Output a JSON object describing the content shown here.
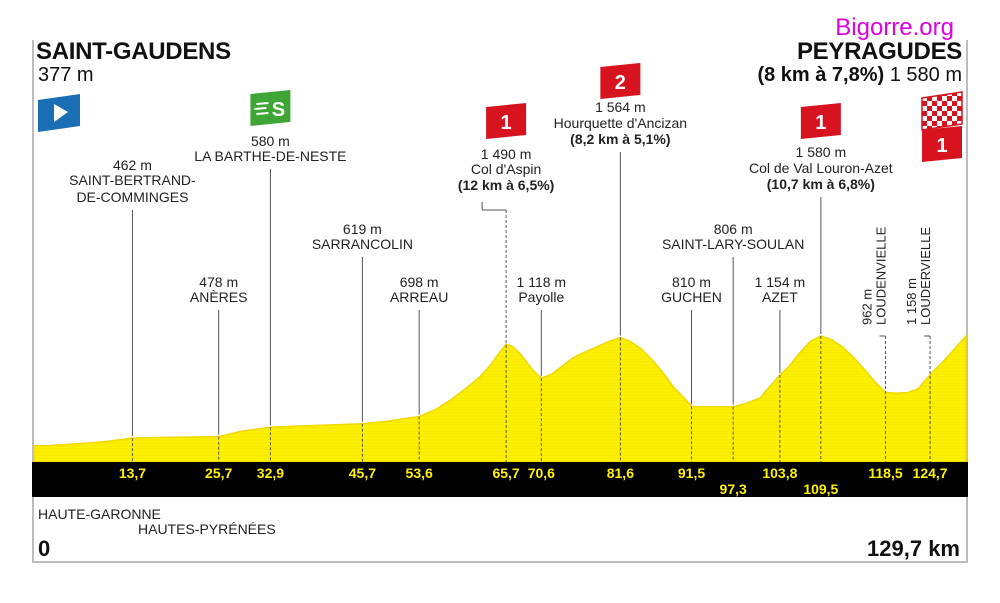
{
  "watermark": "Bigorre.org",
  "start": {
    "name": "SAINT-GAUDENS",
    "alt": "377 m"
  },
  "finish": {
    "name": "PEYRAGUDES",
    "climb": "(8 km à 7,8%)",
    "alt": "1 580 m"
  },
  "regions": [
    "HAUTE-GARONNE",
    "HAUTES-PYRÉNÉES"
  ],
  "start_km": "0",
  "total_km": "129,7 km",
  "colors": {
    "profile": "#fff200",
    "profile_edge": "#f1d800",
    "axis_bar": "#000000",
    "km_text": "#fff200",
    "kom": "#d6131f",
    "sprint": "#3fa535",
    "start_flag": "#1a6fb4"
  },
  "chart_data": {
    "type": "area",
    "xlabel": "",
    "ylabel": "",
    "xlim": [
      0,
      129.7
    ],
    "ylim": [
      0,
      1600
    ],
    "profile": [
      [
        0,
        377
      ],
      [
        2,
        380
      ],
      [
        5,
        395
      ],
      [
        8,
        410
      ],
      [
        10,
        425
      ],
      [
        13.7,
        462
      ],
      [
        17,
        468
      ],
      [
        20,
        472
      ],
      [
        25.7,
        478
      ],
      [
        29,
        540
      ],
      [
        32.9,
        580
      ],
      [
        36,
        592
      ],
      [
        40,
        602
      ],
      [
        45.7,
        619
      ],
      [
        49,
        645
      ],
      [
        53.6,
        698
      ],
      [
        56,
        780
      ],
      [
        58,
        880
      ],
      [
        60,
        1000
      ],
      [
        62,
        1130
      ],
      [
        63.5,
        1260
      ],
      [
        64.7,
        1390
      ],
      [
        65.7,
        1490
      ],
      [
        66.5,
        1470
      ],
      [
        67.5,
        1400
      ],
      [
        68.5,
        1300
      ],
      [
        69.5,
        1200
      ],
      [
        70.6,
        1118
      ],
      [
        72,
        1160
      ],
      [
        73.5,
        1250
      ],
      [
        75,
        1340
      ],
      [
        76.5,
        1400
      ],
      [
        78,
        1450
      ],
      [
        80,
        1520
      ],
      [
        81.6,
        1564
      ],
      [
        83,
        1520
      ],
      [
        84.5,
        1440
      ],
      [
        86,
        1320
      ],
      [
        87.5,
        1180
      ],
      [
        89,
        1020
      ],
      [
        90.5,
        900
      ],
      [
        91.5,
        810
      ],
      [
        92.5,
        806
      ],
      [
        94,
        806
      ],
      [
        95.5,
        806
      ],
      [
        97.3,
        806
      ],
      [
        99,
        840
      ],
      [
        101,
        900
      ],
      [
        103.8,
        1154
      ],
      [
        105,
        1240
      ],
      [
        106.5,
        1390
      ],
      [
        108,
        1520
      ],
      [
        109.5,
        1580
      ],
      [
        111,
        1540
      ],
      [
        112.5,
        1460
      ],
      [
        114,
        1350
      ],
      [
        115.5,
        1220
      ],
      [
        117,
        1080
      ],
      [
        118.5,
        962
      ],
      [
        120,
        955
      ],
      [
        121.5,
        958
      ],
      [
        123,
        1000
      ],
      [
        124.7,
        1158
      ],
      [
        126.5,
        1300
      ],
      [
        128,
        1430
      ],
      [
        129.7,
        1580
      ]
    ],
    "waypoints": [
      {
        "km": "13,7",
        "x": 13.7,
        "elev": 462,
        "label_top": "462 m",
        "name": [
          "SAINT-BERTRAND-",
          "DE-COMMINGES"
        ]
      },
      {
        "km": "25,7",
        "x": 25.7,
        "elev": 478,
        "label_top": "478 m",
        "name": [
          "ANÈRES"
        ]
      },
      {
        "km": "32,9",
        "x": 32.9,
        "elev": 580,
        "label_top": "580 m",
        "name": [
          "LA BARTHE-DE-NESTE"
        ],
        "marker": "sprint",
        "marker_text": "S"
      },
      {
        "km": "45,7",
        "x": 45.7,
        "elev": 619,
        "label_top": "619 m",
        "name": [
          "SARRANCOLIN"
        ]
      },
      {
        "km": "53,6",
        "x": 53.6,
        "elev": 698,
        "label_top": "698 m",
        "name": [
          "ARREAU"
        ]
      },
      {
        "km": "65,7",
        "x": 65.7,
        "elev": 1490,
        "label_top": "1 490 m",
        "name": [
          "Col d'Aspin"
        ],
        "climb": "(12 km à 6,5%)",
        "marker": "kom",
        "marker_text": "1"
      },
      {
        "km": "70,6",
        "x": 70.6,
        "elev": 1118,
        "label_top": "1 118 m",
        "name": [
          "Payolle"
        ]
      },
      {
        "km": "81,6",
        "x": 81.6,
        "elev": 1564,
        "label_top": "1 564 m",
        "name": [
          "Hourquette d'Ancizan"
        ],
        "climb": "(8,2 km à 5,1%)",
        "marker": "kom",
        "marker_text": "2"
      },
      {
        "km": "91,5",
        "x": 91.5,
        "elev": 810,
        "label_top": "810 m",
        "name": [
          "GUCHEN"
        ]
      },
      {
        "km": "97,3",
        "x": 97.3,
        "elev": 806,
        "label_top": "806 m",
        "name": [
          "SAINT-LARY-SOULAN"
        ]
      },
      {
        "km": "103,8",
        "x": 103.8,
        "elev": 1154,
        "label_top": "1 154 m",
        "name": [
          "AZET"
        ]
      },
      {
        "km": "109,5",
        "x": 109.5,
        "elev": 1580,
        "label_top": "1 580 m",
        "name": [
          "Col de Val Louron-Azet"
        ],
        "climb": "(10,7 km à 6,8%)",
        "marker": "kom",
        "marker_text": "1"
      },
      {
        "km": "118,5",
        "x": 118.5,
        "elev": 962,
        "label_top": "962 m",
        "name": [
          "LOUDENVIELLE"
        ],
        "vertical": true
      },
      {
        "km": "124,7",
        "x": 124.7,
        "elev": 1158,
        "label_top": "1 158 m",
        "name": [
          "LOUDERVIELLE"
        ],
        "vertical": true
      }
    ],
    "finish_marker_text": "1"
  }
}
